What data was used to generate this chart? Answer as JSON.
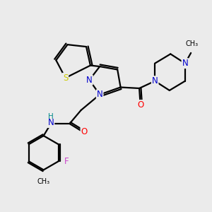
{
  "bg_color": "#ebebeb",
  "atom_colors": {
    "C": "#000000",
    "N": "#0000cc",
    "O": "#ff0000",
    "S": "#cccc00",
    "F": "#cc44cc",
    "H": "#008888"
  },
  "bond_color": "#000000",
  "line_width": 1.6,
  "font_size": 8.5
}
